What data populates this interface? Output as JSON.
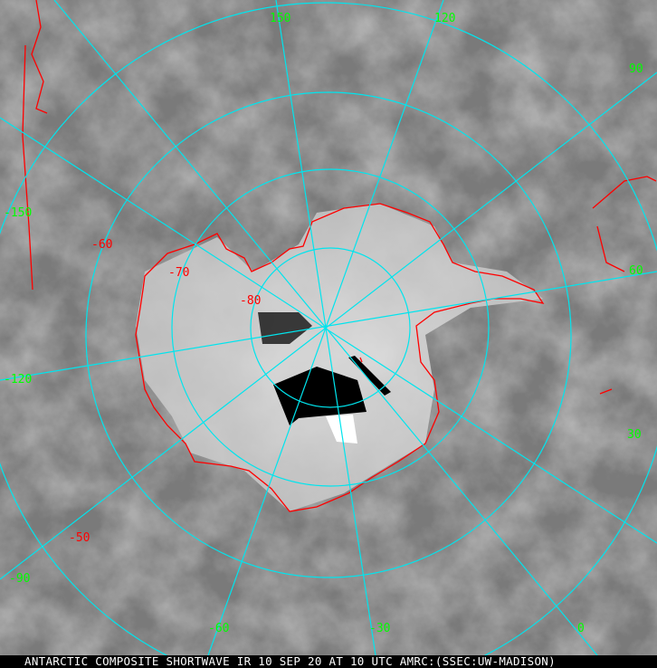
{
  "caption": "ANTARCTIC COMPOSITE SHORTWAVE IR 10 SEP 20 AT 10 UTC AMRC:(SSEC:UW-MADISON)",
  "colors": {
    "graticule": "#00e5ee",
    "coastline": "#ff0000",
    "longitude_labels": "#00ff00",
    "latitude_labels": "#ff0000",
    "background": "#808080"
  },
  "longitude_labels": [
    "150",
    "120",
    "90",
    "60",
    "30",
    "0",
    "-30",
    "-60",
    "-90",
    "-120",
    "-150"
  ],
  "latitude_labels": [
    "-50",
    "-60",
    "-70",
    "-80"
  ]
}
